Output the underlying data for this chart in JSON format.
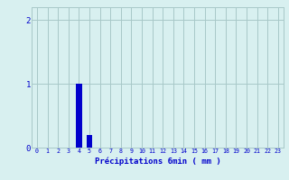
{
  "hours": [
    0,
    1,
    2,
    3,
    4,
    5,
    6,
    7,
    8,
    9,
    10,
    11,
    12,
    13,
    14,
    15,
    16,
    17,
    18,
    19,
    20,
    21,
    22,
    23
  ],
  "values": [
    0,
    0,
    0,
    0,
    1.0,
    0.2,
    0,
    0,
    0,
    0,
    0,
    0,
    0,
    0,
    0,
    0,
    0,
    0,
    0,
    0,
    0,
    0,
    0,
    0
  ],
  "bar_color": "#0000cc",
  "background_color": "#d8f0f0",
  "grid_color": "#a8c8c8",
  "text_color": "#0000cc",
  "xlabel": "Précipitations 6min ( mm )",
  "ylim": [
    0,
    2.2
  ],
  "yticks": [
    0,
    1,
    2
  ],
  "ytick_labels": [
    "0",
    "1",
    "2"
  ],
  "xlim": [
    -0.5,
    23.5
  ],
  "bar_width": 0.6,
  "xlabel_fontsize": 6.5,
  "xtick_fontsize": 4.8,
  "ytick_fontsize": 6.5
}
